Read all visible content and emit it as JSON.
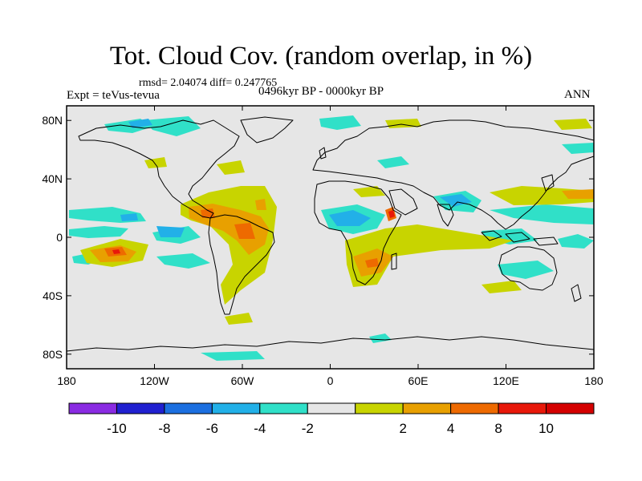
{
  "header": {
    "title": "Tot. Cloud Cov. (random overlap, in %)",
    "stats": "rmsd= 2.04074 diff= 0.247765",
    "experiment": "Expt = teVus-tevua",
    "period": "0496kyr BP - 0000kyr BP",
    "season": "ANN"
  },
  "map": {
    "projection": "cylindrical equidistant",
    "lon_range": [
      -180,
      180
    ],
    "lat_range": [
      -90,
      90
    ],
    "background_color": "#e6e6e6",
    "x_ticks": [
      {
        "lon": -180,
        "label": "180"
      },
      {
        "lon": -120,
        "label": "120W"
      },
      {
        "lon": -60,
        "label": "60W"
      },
      {
        "lon": 0,
        "label": "0"
      },
      {
        "lon": 60,
        "label": "60E"
      },
      {
        "lon": 120,
        "label": "120E"
      },
      {
        "lon": 180,
        "label": "180"
      }
    ],
    "y_ticks": [
      {
        "lat": 80,
        "label": "80N"
      },
      {
        "lat": 40,
        "label": "40N"
      },
      {
        "lat": 0,
        "label": "0"
      },
      {
        "lat": -40,
        "label": "40S"
      },
      {
        "lat": -80,
        "label": "80S"
      }
    ]
  },
  "colorbar": {
    "colors": [
      "#8a2be2",
      "#2020d0",
      "#1c6fe0",
      "#22b0e8",
      "#30e0c8",
      "#e6e6e6",
      "#c8d400",
      "#e8a000",
      "#ee6a00",
      "#e8180a",
      "#d40000"
    ],
    "labels": [
      "-10",
      "-8",
      "-6",
      "-4",
      "-2",
      "2",
      "4",
      "8",
      "10"
    ]
  }
}
